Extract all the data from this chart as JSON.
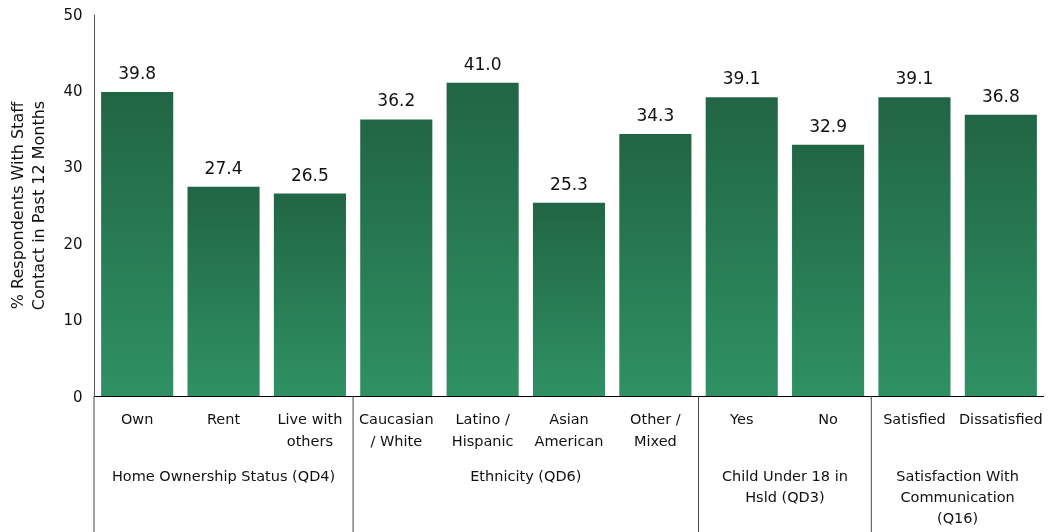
{
  "chart_data": {
    "type": "bar",
    "ylabel": "% Respondents With Staff Contact in Past 12 Months",
    "categories": [
      "Own",
      "Rent",
      "Live with others",
      "Caucasian / White",
      "Latino / Hispanic",
      "Asian American",
      "Other / Mixed",
      "Yes",
      "No",
      "Satisfied",
      "Dissatisfied"
    ],
    "values": [
      39.8,
      27.4,
      26.5,
      36.2,
      41.0,
      25.3,
      34.3,
      39.1,
      32.9,
      39.1,
      36.8
    ],
    "color": "#287b54",
    "value_labels": [
      "39.8",
      "27.4",
      "26.5",
      "36.2",
      "41.0",
      "25.3",
      "34.3",
      "39.1",
      "32.9",
      "39.1",
      "36.8"
    ],
    "ylim": [
      0,
      50
    ],
    "yticks": [
      0,
      10,
      20,
      30,
      40,
      50
    ],
    "annotations": [
      "Home Ownership Status (QD4)",
      "Ethnicity (QD6)",
      "Child Under 18 in Hsld (QD3)",
      "Satisfaction With Communication (Q16)"
    ]
  }
}
